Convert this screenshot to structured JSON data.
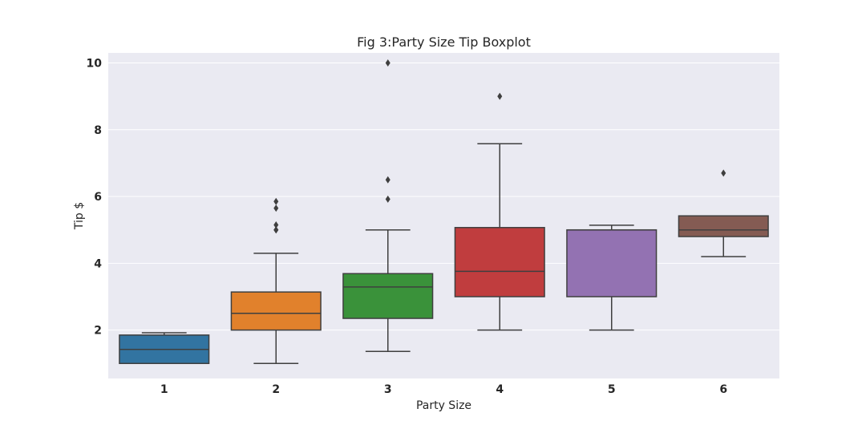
{
  "chart_data": {
    "type": "boxplot",
    "title": "Fig 3:Party Size Tip Boxplot",
    "xlabel": "Party Size",
    "ylabel": "Tip $",
    "categories": [
      "1",
      "2",
      "3",
      "4",
      "5",
      "6"
    ],
    "ylim": [
      0.55,
      10.3
    ],
    "yticks": [
      2,
      4,
      6,
      8,
      10
    ],
    "grid": true,
    "colors": [
      "#3274a1",
      "#e1812c",
      "#3a923a",
      "#c03d3e",
      "#9372b2",
      "#845b53"
    ],
    "boxes": [
      {
        "category": "1",
        "whisker_low": 1.0,
        "q1": 1.0,
        "median": 1.42,
        "q3": 1.85,
        "whisker_high": 1.92,
        "outliers": []
      },
      {
        "category": "2",
        "whisker_low": 1.0,
        "q1": 2.0,
        "median": 2.5,
        "q3": 3.14,
        "whisker_high": 4.3,
        "outliers": [
          5.0,
          5.0,
          5.15,
          5.65,
          5.85
        ]
      },
      {
        "category": "3",
        "whisker_low": 1.36,
        "q1": 2.35,
        "median": 3.29,
        "q3": 3.69,
        "whisker_high": 5.0,
        "outliers": [
          5.92,
          6.5,
          10.0
        ]
      },
      {
        "category": "4",
        "whisker_low": 2.0,
        "q1": 3.0,
        "median": 3.76,
        "q3": 5.07,
        "whisker_high": 7.58,
        "outliers": [
          9.0
        ]
      },
      {
        "category": "5",
        "whisker_low": 2.0,
        "q1": 3.0,
        "median": 5.0,
        "q3": 5.0,
        "whisker_high": 5.14,
        "outliers": []
      },
      {
        "category": "6",
        "whisker_low": 4.2,
        "q1": 4.8,
        "median": 5.0,
        "q3": 5.42,
        "whisker_high": 5.42,
        "outliers": [
          6.7
        ]
      }
    ]
  }
}
